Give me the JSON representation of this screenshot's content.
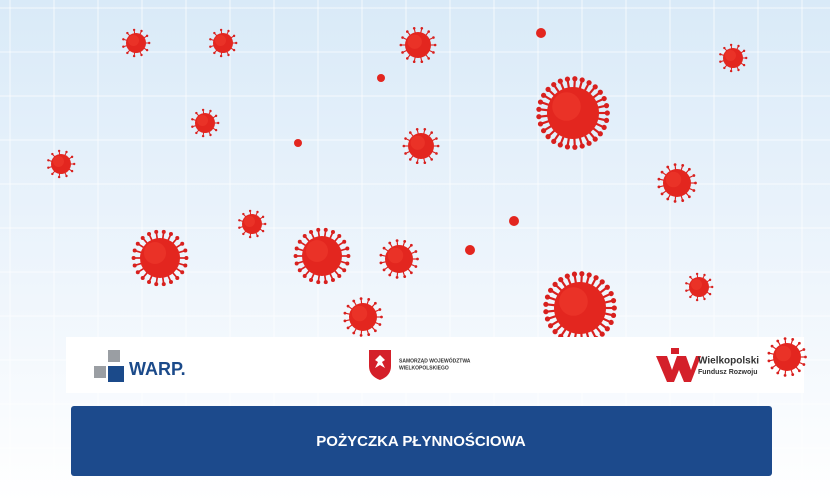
{
  "logos": {
    "warp": "WARP.",
    "samorzad": [
      "SAMORZĄD WOJEWÓDZTWA",
      "WIELKOPOLSKIEGO"
    ],
    "fundusz": [
      "Wielkopolski",
      "Fundusz Rozwoju"
    ]
  },
  "button": {
    "label": "POŻYCZKA PŁYNNOŚCIOWA"
  }
}
